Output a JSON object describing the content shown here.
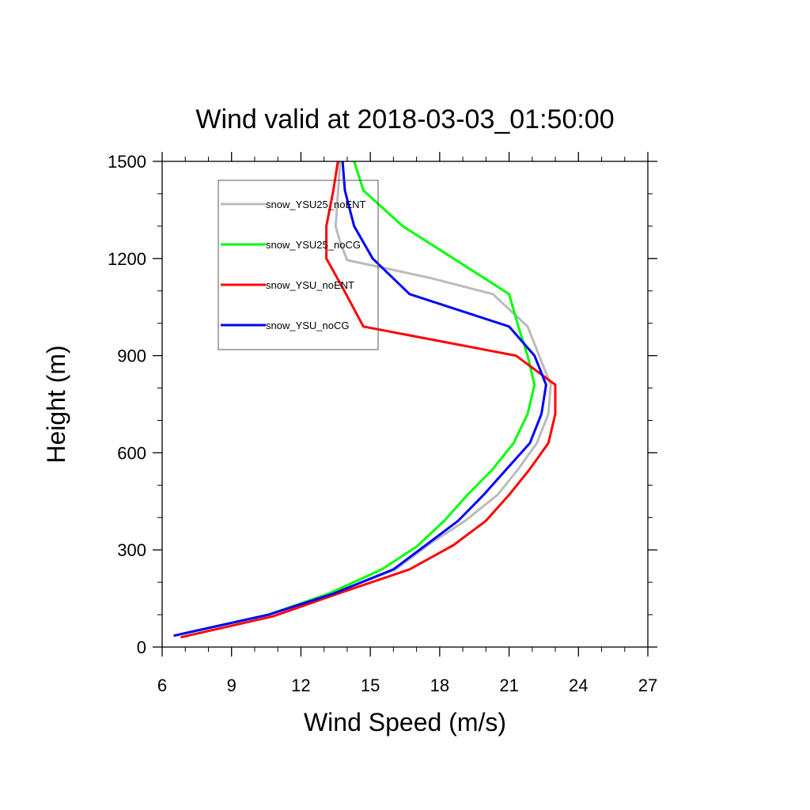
{
  "chart_data": {
    "type": "line",
    "title": "Wind valid at 2018-03-03_01:50:00",
    "xlabel": "Wind Speed (m/s)",
    "ylabel": "Height (m)",
    "xlim": [
      6,
      27
    ],
    "ylim": [
      0,
      1500
    ],
    "xticks": [
      "6",
      "9",
      "12",
      "15",
      "18",
      "21",
      "24",
      "27"
    ],
    "yticks": [
      "0",
      "300",
      "600",
      "900",
      "1200",
      "1500"
    ],
    "grid": false,
    "legend_position": "top-left",
    "series": [
      {
        "name": "snow_YSU25_noENT",
        "color": "#bbbbbb",
        "points": [
          [
            6.5,
            35
          ],
          [
            10.6,
            100
          ],
          [
            13.4,
            165
          ],
          [
            16.1,
            240
          ],
          [
            17.6,
            320
          ],
          [
            19.1,
            390
          ],
          [
            20.5,
            470
          ],
          [
            21.4,
            550
          ],
          [
            22.2,
            630
          ],
          [
            22.7,
            720
          ],
          [
            22.8,
            810
          ],
          [
            22.3,
            900
          ],
          [
            21.8,
            990
          ],
          [
            20.3,
            1090
          ],
          [
            17.6,
            1140
          ],
          [
            14.0,
            1195
          ],
          [
            13.7,
            1250
          ],
          [
            13.5,
            1300
          ],
          [
            13.6,
            1400
          ],
          [
            13.7,
            1500
          ]
        ]
      },
      {
        "name": "snow_YSU25_noCG",
        "color": "#00ff00",
        "points": [
          [
            6.5,
            35
          ],
          [
            10.6,
            100
          ],
          [
            13.2,
            165
          ],
          [
            15.5,
            240
          ],
          [
            17.0,
            310
          ],
          [
            18.2,
            390
          ],
          [
            19.2,
            470
          ],
          [
            20.3,
            550
          ],
          [
            21.2,
            630
          ],
          [
            21.8,
            720
          ],
          [
            22.1,
            810
          ],
          [
            21.8,
            900
          ],
          [
            21.4,
            990
          ],
          [
            21.0,
            1090
          ],
          [
            18.6,
            1200
          ],
          [
            16.4,
            1300
          ],
          [
            14.7,
            1410
          ],
          [
            14.3,
            1500
          ]
        ]
      },
      {
        "name": "snow_YSU_noENT",
        "color": "#ff0000",
        "points": [
          [
            6.8,
            30
          ],
          [
            10.8,
            95
          ],
          [
            13.6,
            165
          ],
          [
            16.7,
            240
          ],
          [
            18.6,
            315
          ],
          [
            20.0,
            390
          ],
          [
            21.0,
            470
          ],
          [
            21.9,
            550
          ],
          [
            22.7,
            630
          ],
          [
            23.0,
            720
          ],
          [
            23.0,
            810
          ],
          [
            21.3,
            900
          ],
          [
            14.7,
            990
          ],
          [
            13.8,
            1110
          ],
          [
            13.1,
            1200
          ],
          [
            13.1,
            1300
          ],
          [
            13.4,
            1410
          ],
          [
            13.6,
            1500
          ]
        ]
      },
      {
        "name": "snow_YSU_noCG",
        "color": "#0000ff",
        "points": [
          [
            6.5,
            35
          ],
          [
            10.6,
            100
          ],
          [
            13.4,
            165
          ],
          [
            16.0,
            240
          ],
          [
            17.5,
            320
          ],
          [
            18.8,
            390
          ],
          [
            19.9,
            470
          ],
          [
            20.9,
            550
          ],
          [
            21.9,
            630
          ],
          [
            22.4,
            720
          ],
          [
            22.6,
            810
          ],
          [
            22.1,
            900
          ],
          [
            21.0,
            990
          ],
          [
            16.7,
            1090
          ],
          [
            15.1,
            1200
          ],
          [
            14.3,
            1300
          ],
          [
            13.9,
            1410
          ],
          [
            13.8,
            1500
          ]
        ]
      }
    ]
  }
}
